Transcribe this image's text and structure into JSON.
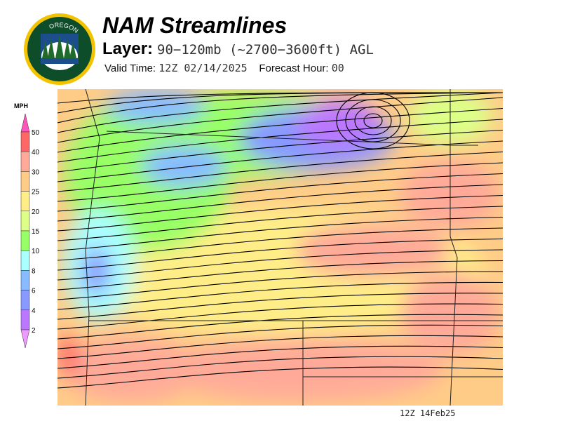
{
  "header": {
    "logo_text": "OREGON DEPARTMENT OF FORESTRY",
    "title": "NAM Streamlines",
    "layer_label": "Layer:",
    "layer_value": "90−120mb (~2700−3600ft) AGL",
    "valid_label": "Valid Time:",
    "valid_value": "12Z 02/14/2025",
    "forecast_label": "Forecast Hour:",
    "forecast_value": "00"
  },
  "legend": {
    "unit": "MPH",
    "ticks": [
      "50",
      "40",
      "30",
      "25",
      "20",
      "15",
      "10",
      "8",
      "6",
      "4",
      "2"
    ],
    "colors": {
      "above": "#ff55bb",
      "40-50": "#ff6666",
      "30-40": "#ffaa99",
      "25-30": "#ffcc88",
      "20-25": "#ffee88",
      "15-20": "#ddff88",
      "10-15": "#99ff66",
      "8-10": "#aaffff",
      "6-8": "#88bbff",
      "4-6": "#8899ff",
      "2-4": "#bb77ff",
      "below": "#ee99ff"
    }
  },
  "footer": {
    "valid_stamp": "12Z 14Feb25"
  }
}
